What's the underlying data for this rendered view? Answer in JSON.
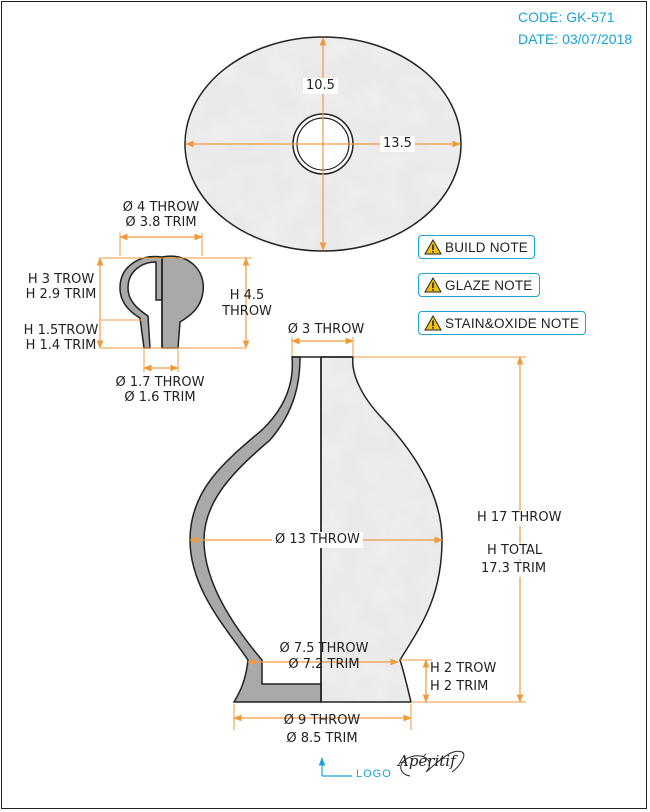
{
  "meta": {
    "code": "CODE: GK-571",
    "date": "DATE: 03/07/2018"
  },
  "notes": [
    {
      "label": "BUILD NOTE"
    },
    {
      "label": "GLAZE NOTE"
    },
    {
      "label": "STAIN&OXIDE NOTE"
    }
  ],
  "lid": {
    "height": "10.5",
    "width": "13.5"
  },
  "knob": {
    "top_dia_throw": "Ø 4 THROW",
    "top_dia_trim": "Ø 3.8 TRIM",
    "upper_h_throw": "H 3 TROW",
    "upper_h_trim": "H 2.9 TRIM",
    "lower_h_throw": "H 1.5TROW",
    "lower_h_trim": "H 1.4 TRIM",
    "total_h": "H 4.5",
    "total_h_throw": "THROW",
    "stem_dia_throw": "Ø 1.7 THROW",
    "stem_dia_trim": "Ø 1.6 TRIM"
  },
  "vase": {
    "neck_dia": "Ø 3 THROW",
    "body_dia": "Ø 13 THROW",
    "height_throw": "H 17 THROW",
    "height_total": "H TOTAL",
    "height_trim": "17.3 TRIM",
    "foot_dia_throw": "Ø 7.5 THROW",
    "foot_dia_trim": "Ø 7.2 TRIM",
    "foot_h_throw": "H 2 TROW",
    "foot_h_trim": "H 2 TRIM",
    "base_dia_throw": "Ø 9 THROW",
    "base_dia_trim": "Ø 8.5 TRIM"
  },
  "logo": {
    "label": "LOGO",
    "brand": "Apéritif"
  },
  "colors": {
    "dimension": "#f09a3e",
    "accent": "#1aa3d6",
    "wall": "#a9a9a9",
    "outline": "#222222",
    "warning": "#f2c40f"
  }
}
